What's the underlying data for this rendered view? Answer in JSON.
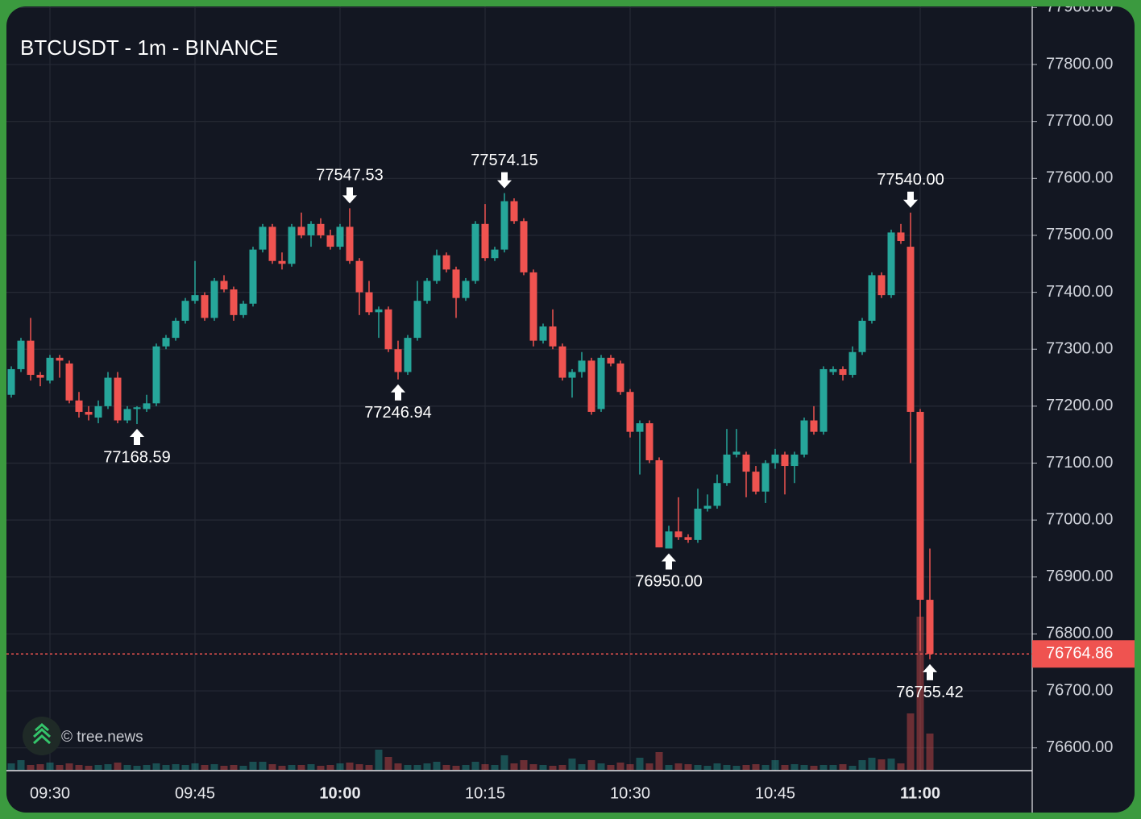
{
  "chart_data": {
    "type": "candlestick",
    "title": "BTCUSDT - 1m - BINANCE",
    "watermark": "© tree.news",
    "up_color": "#26a69a",
    "down_color": "#ef5350",
    "grid": true,
    "categories": [
      "09:26",
      "09:27",
      "09:28",
      "09:29",
      "09:30",
      "09:31",
      "09:32",
      "09:33",
      "09:34",
      "09:35",
      "09:36",
      "09:37",
      "09:38",
      "09:39",
      "09:40",
      "09:41",
      "09:42",
      "09:43",
      "09:44",
      "09:45",
      "09:46",
      "09:47",
      "09:48",
      "09:49",
      "09:50",
      "09:51",
      "09:52",
      "09:53",
      "09:54",
      "09:55",
      "09:56",
      "09:57",
      "09:58",
      "09:59",
      "10:00",
      "10:01",
      "10:02",
      "10:03",
      "10:04",
      "10:05",
      "10:06",
      "10:07",
      "10:08",
      "10:09",
      "10:10",
      "10:11",
      "10:12",
      "10:13",
      "10:14",
      "10:15",
      "10:16",
      "10:17",
      "10:18",
      "10:19",
      "10:20",
      "10:21",
      "10:22",
      "10:23",
      "10:24",
      "10:25",
      "10:26",
      "10:27",
      "10:28",
      "10:29",
      "10:30",
      "10:31",
      "10:32",
      "10:33",
      "10:34",
      "10:35",
      "10:36",
      "10:37",
      "10:38",
      "10:39",
      "10:40",
      "10:41",
      "10:42",
      "10:43",
      "10:44",
      "10:45",
      "10:46",
      "10:47",
      "10:48",
      "10:49",
      "10:50",
      "10:51",
      "10:52",
      "10:53",
      "10:54",
      "10:55",
      "10:56",
      "10:57",
      "10:58",
      "10:59",
      "11:00",
      "11:01"
    ],
    "open": [
      77220,
      77265,
      77315,
      77255,
      77245,
      77285,
      77275,
      77210,
      77190,
      77180,
      77200,
      77250,
      77175,
      77195,
      77195,
      77205,
      77305,
      77320,
      77350,
      77385,
      77395,
      77355,
      77420,
      77405,
      77360,
      77380,
      77475,
      77515,
      77455,
      77450,
      77515,
      77500,
      77520,
      77500,
      77480,
      77515,
      77455,
      77400,
      77365,
      77370,
      77300,
      77260,
      77320,
      77385,
      77420,
      77465,
      77440,
      77390,
      77420,
      77520,
      77460,
      77475,
      77560,
      77525,
      77435,
      77315,
      77340,
      77305,
      77250,
      77260,
      77280,
      77195,
      77285,
      77275,
      77225,
      77155,
      77170,
      77105,
      76950,
      76980,
      76970,
      76965,
      77020,
      77025,
      77065,
      77115,
      77115,
      77085,
      77050,
      77100,
      77115,
      77095,
      77115,
      77175,
      77155,
      77260,
      77265,
      77255,
      77295,
      77350,
      77430,
      77395,
      77505,
      77480,
      77190,
      76860
    ],
    "high": [
      77270,
      77320,
      77355,
      77260,
      77290,
      77290,
      77280,
      77225,
      77200,
      77210,
      77260,
      77260,
      77200,
      77200,
      77220,
      77310,
      77325,
      77355,
      77390,
      77455,
      77400,
      77425,
      77430,
      77410,
      77385,
      77480,
      77520,
      77520,
      77470,
      77520,
      77540,
      77525,
      77530,
      77510,
      77520,
      77547.53,
      77460,
      77420,
      77375,
      77375,
      77315,
      77325,
      77420,
      77425,
      77475,
      77470,
      77445,
      77425,
      77525,
      77555,
      77480,
      77574.15,
      77565,
      77530,
      77440,
      77345,
      77370,
      77310,
      77265,
      77295,
      77285,
      77290,
      77290,
      77280,
      77230,
      77175,
      77175,
      77110,
      76990,
      77040,
      76975,
      77055,
      77045,
      77080,
      77160,
      77160,
      77120,
      77095,
      77105,
      77125,
      77120,
      77120,
      77180,
      77200,
      77270,
      77270,
      77270,
      77305,
      77355,
      77435,
      77435,
      77510,
      77520,
      77540,
      77195,
      76950
    ],
    "low": [
      77215,
      77260,
      77245,
      77235,
      77240,
      77250,
      77205,
      77180,
      77175,
      77170,
      77195,
      77170,
      77170,
      77168.59,
      77190,
      77200,
      77300,
      77315,
      77345,
      77380,
      77350,
      77350,
      77400,
      77350,
      77355,
      77375,
      77470,
      77450,
      77440,
      77445,
      77495,
      77480,
      77495,
      77475,
      77475,
      77450,
      77360,
      77360,
      77320,
      77295,
      77246.94,
      77255,
      77315,
      77380,
      77415,
      77435,
      77355,
      77385,
      77415,
      77455,
      77455,
      77470,
      77520,
      77430,
      77305,
      77310,
      77300,
      77245,
      77215,
      77250,
      77185,
      77190,
      77270,
      77220,
      77145,
      77080,
      77100,
      76952,
      76950,
      76965,
      76960,
      76960,
      77015,
      77020,
      77060,
      77110,
      77040,
      77045,
      77030,
      77090,
      77045,
      77065,
      77110,
      77150,
      77150,
      77255,
      77245,
      77250,
      77290,
      77345,
      77390,
      77390,
      77485,
      77100,
      76770,
      76755.42
    ],
    "close": [
      77265,
      77315,
      77255,
      77250,
      77285,
      77280,
      77210,
      77190,
      77185,
      77200,
      77250,
      77175,
      77195,
      77198,
      77205,
      77305,
      77320,
      77350,
      77385,
      77395,
      77355,
      77420,
      77405,
      77360,
      77380,
      77475,
      77515,
      77455,
      77450,
      77515,
      77500,
      77520,
      77500,
      77480,
      77515,
      77455,
      77400,
      77365,
      77370,
      77300,
      77260,
      77320,
      77385,
      77420,
      77465,
      77440,
      77390,
      77420,
      77520,
      77460,
      77475,
      77560,
      77525,
      77435,
      77315,
      77340,
      77305,
      77250,
      77260,
      77280,
      77190,
      77285,
      77275,
      77225,
      77155,
      77170,
      77105,
      76952,
      76980,
      76970,
      76965,
      77020,
      77025,
      77065,
      77115,
      77120,
      77085,
      77050,
      77100,
      77115,
      77095,
      77115,
      77175,
      77155,
      77265,
      77265,
      77255,
      77295,
      77350,
      77430,
      77395,
      77505,
      77490,
      77190,
      76860,
      76764.86
    ],
    "volume": [
      8,
      12,
      6,
      7,
      9,
      6,
      8,
      6,
      5,
      6,
      7,
      9,
      6,
      5,
      6,
      8,
      6,
      7,
      6,
      8,
      6,
      7,
      5,
      6,
      5,
      10,
      10,
      7,
      5,
      6,
      6,
      7,
      5,
      6,
      8,
      9,
      7,
      6,
      25,
      16,
      8,
      6,
      6,
      8,
      10,
      6,
      5,
      6,
      10,
      7,
      6,
      18,
      8,
      12,
      7,
      6,
      5,
      6,
      14,
      7,
      12,
      8,
      6,
      9,
      7,
      15,
      8,
      22,
      6,
      8,
      7,
      6,
      5,
      8,
      6,
      5,
      6,
      7,
      6,
      12,
      6,
      7,
      6,
      5,
      6,
      6,
      7,
      5,
      12,
      15,
      13,
      14,
      8,
      70,
      190,
      45
    ],
    "vlim": [
      0,
      200
    ],
    "ylim": [
      76600,
      77900
    ],
    "yticks": [
      {
        "value": 76600,
        "label": "76600.00"
      },
      {
        "value": 76700,
        "label": "76700.00"
      },
      {
        "value": 76800,
        "label": "76800.00"
      },
      {
        "value": 76900,
        "label": "76900.00"
      },
      {
        "value": 77000,
        "label": "77000.00"
      },
      {
        "value": 77100,
        "label": "77100.00"
      },
      {
        "value": 77200,
        "label": "77200.00"
      },
      {
        "value": 77300,
        "label": "77300.00"
      },
      {
        "value": 77400,
        "label": "77400.00"
      },
      {
        "value": 77500,
        "label": "77500.00"
      },
      {
        "value": 77600,
        "label": "77600.00"
      },
      {
        "value": 77700,
        "label": "77700.00"
      },
      {
        "value": 77800,
        "label": "77800.00"
      },
      {
        "value": 77900,
        "label": "77900.00"
      }
    ],
    "xticks": [
      {
        "label": "09:30",
        "bold": false
      },
      {
        "label": "09:45",
        "bold": false
      },
      {
        "label": "10:00",
        "bold": true
      },
      {
        "label": "10:15",
        "bold": false
      },
      {
        "label": "10:30",
        "bold": false
      },
      {
        "label": "10:45",
        "bold": false
      },
      {
        "label": "11:00",
        "bold": true
      }
    ],
    "last_price": 76764.86,
    "annotations": [
      {
        "label": "77168.59",
        "index": 13,
        "at": "low"
      },
      {
        "label": "77547.53",
        "index": 35,
        "at": "high"
      },
      {
        "label": "77246.94",
        "index": 40,
        "at": "low"
      },
      {
        "label": "77574.15",
        "index": 51,
        "at": "high"
      },
      {
        "label": "76950.00",
        "index": 68,
        "at": "low"
      },
      {
        "label": "77540.00",
        "index": 93,
        "at": "high"
      },
      {
        "label": "76755.42",
        "index": 95,
        "at": "low"
      }
    ]
  }
}
